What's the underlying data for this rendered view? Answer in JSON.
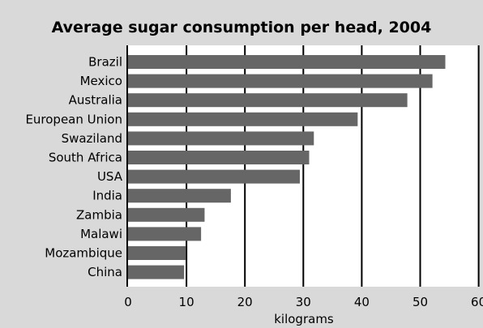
{
  "chart_data": {
    "type": "bar",
    "orientation": "horizontal",
    "title": "Average sugar consumption per head, 2004",
    "xlabel": "kilograms",
    "ylabel": "",
    "xlim": [
      0,
      60
    ],
    "xticks": [
      0,
      10,
      20,
      30,
      40,
      50,
      60
    ],
    "xtick_labels": [
      "0",
      "10",
      "20",
      "30",
      "40",
      "50",
      "60"
    ],
    "grid": "vertical",
    "categories": [
      "Brazil",
      "Mexico",
      "Australia",
      "European Union",
      "Swaziland",
      "South Africa",
      "USA",
      "India",
      "Zambia",
      "Malawi",
      "Mozambique",
      "China"
    ],
    "values": [
      54.3,
      52.1,
      47.8,
      39.3,
      31.8,
      31.0,
      29.4,
      17.6,
      13.1,
      12.5,
      9.9,
      9.6
    ],
    "colors": {
      "bar": "#666666",
      "background": "#d9d9d9",
      "plot_background": "#ffffff",
      "grid": "#000000"
    }
  }
}
